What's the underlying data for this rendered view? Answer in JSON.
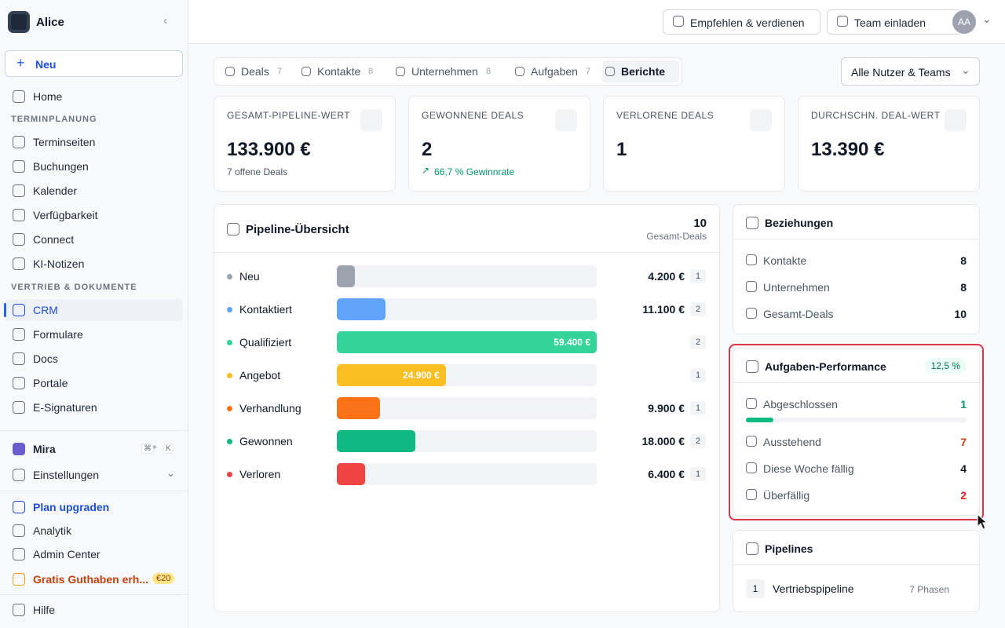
{
  "sidebar": {
    "workspace": "Alice",
    "new_button": "Neu",
    "top": [
      {
        "label": "Home"
      }
    ],
    "groups": [
      {
        "title": "TERMINPLANUNG",
        "items": [
          "Terminseiten",
          "Buchungen",
          "Kalender",
          "Verfügbarkeit",
          "Connect",
          "KI-Notizen"
        ]
      },
      {
        "title": "VERTRIEB & DOKUMENTE",
        "items": [
          "CRM",
          "Formulare",
          "Docs",
          "Portale",
          "E-Signaturen"
        ]
      }
    ],
    "mira": {
      "label": "Mira",
      "keys": [
        "⌘",
        "+",
        "K"
      ]
    },
    "settings": "Einstellungen",
    "bottom": [
      "Plan upgraden",
      "Analytik",
      "Admin Center"
    ],
    "credit": {
      "label": "Gratis Guthaben erh...",
      "badge": "€20"
    },
    "help": "Hilfe"
  },
  "header": {
    "refer": "Empfehlen & verdienen",
    "invite": "Team einladen",
    "avatar": "AA"
  },
  "tabs": [
    {
      "label": "Deals",
      "count": "7"
    },
    {
      "label": "Kontakte",
      "count": "8"
    },
    {
      "label": "Unternehmen",
      "count": "8"
    },
    {
      "label": "Aufgaben",
      "count": "7"
    },
    {
      "label": "Berichte"
    }
  ],
  "filter": "Alle Nutzer & Teams",
  "stats": [
    {
      "label": "GESAMT-PIPELINE-WERT",
      "value": "133.900 €",
      "sub": "7 offene Deals"
    },
    {
      "label": "GEWONNENE DEALS",
      "value": "2",
      "sub": "66,7 % Gewinnrate"
    },
    {
      "label": "VERLORENE DEALS",
      "value": "1"
    },
    {
      "label": "DURCHSCHN. DEAL-WERT",
      "value": "13.390 €"
    }
  ],
  "pipeline": {
    "title": "Pipeline-Übersicht",
    "total": "10",
    "total_label": "Gesamt-Deals",
    "stages": [
      {
        "name": "Neu",
        "value": 4200,
        "value_label": "4.200 €",
        "count": "1",
        "color": "#9ca3af"
      },
      {
        "name": "Kontaktiert",
        "value": 11100,
        "value_label": "11.100 €",
        "count": "2",
        "color": "#60a5fa"
      },
      {
        "name": "Qualifiziert",
        "value": 59400,
        "value_label": "59.400 €",
        "count": "2",
        "color": "#34d399"
      },
      {
        "name": "Angebot",
        "value": 24900,
        "value_label": "24.900 €",
        "count": "1",
        "color": "#fbbf24"
      },
      {
        "name": "Verhandlung",
        "value": 9900,
        "value_label": "9.900 €",
        "count": "1",
        "color": "#f97316"
      },
      {
        "name": "Gewonnen",
        "value": 18000,
        "value_label": "18.000 €",
        "count": "2",
        "color": "#10b981"
      },
      {
        "name": "Verloren",
        "value": 6400,
        "value_label": "6.400 €",
        "count": "1",
        "color": "#ef4444"
      }
    ]
  },
  "relations": {
    "title": "Beziehungen",
    "rows": [
      {
        "label": "Kontakte",
        "value": "8"
      },
      {
        "label": "Unternehmen",
        "value": "8"
      },
      {
        "label": "Gesamt-Deals",
        "value": "10"
      }
    ]
  },
  "tasks": {
    "title": "Aufgaben-Performance",
    "rate": {
      "value": 12.5,
      "label": "12,5 %"
    },
    "rows": [
      {
        "label": "Abgeschlossen",
        "value": "1",
        "color": "#059669"
      },
      {
        "label": "Ausstehend",
        "value": "7",
        "color": "#c2410c"
      },
      {
        "label": "Diese Woche fällig",
        "value": "4",
        "color": "#111827"
      },
      {
        "label": "Überfällig",
        "value": "2",
        "color": "#dc2626"
      }
    ]
  },
  "pipelines": {
    "title": "Pipelines",
    "rows": [
      {
        "index": "1",
        "name": "Vertriebspipeline",
        "phases": "7 Phasen"
      }
    ]
  }
}
